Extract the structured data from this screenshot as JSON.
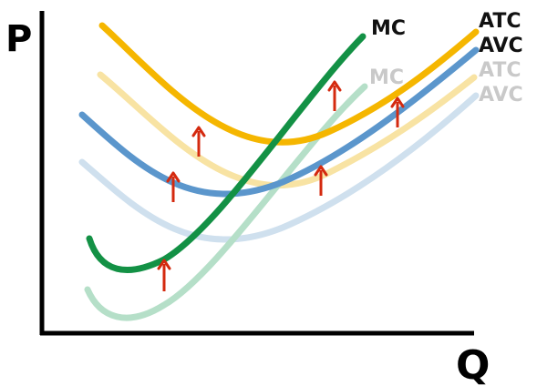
{
  "chart_data": {
    "type": "line",
    "title": "",
    "xlabel": "Q",
    "ylabel": "P",
    "grid": false,
    "legend": "none",
    "series": [
      {
        "name": "ATC",
        "state": "old",
        "color": "#f8e3a3"
      },
      {
        "name": "AVC",
        "state": "old",
        "color": "#cfe0ee"
      },
      {
        "name": "MC",
        "state": "old",
        "color": "#b5dfc8"
      },
      {
        "name": "ATC",
        "state": "new",
        "color": "#f5b600"
      },
      {
        "name": "AVC",
        "state": "new",
        "color": "#5b96cc"
      },
      {
        "name": "MC",
        "state": "new",
        "color": "#139145"
      }
    ],
    "annotations": {
      "arrows": {
        "count": 6,
        "direction": "up",
        "color": "#d42a0f"
      }
    }
  },
  "labels": {
    "new_mc": "MC",
    "new_atc": "ATC",
    "new_avc": "AVC",
    "old_mc": "MC",
    "old_atc": "ATC",
    "old_avc": "AVC",
    "y_axis": "P",
    "x_axis": "Q"
  }
}
